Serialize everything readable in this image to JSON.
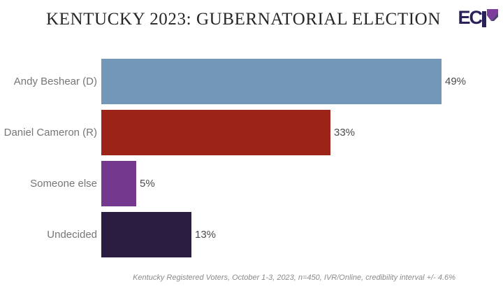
{
  "header": {
    "title": "KENTUCKY 2023: GUBERNATORIAL ELECTION",
    "logo": {
      "text": "EC",
      "stylized_letter": "P",
      "navy_color": "#29215a",
      "purple_color": "#7c3f9c"
    }
  },
  "chart_data": {
    "type": "bar",
    "orientation": "horizontal",
    "title": "KENTUCKY 2023: GUBERNATORIAL ELECTION",
    "categories": [
      "Andy Beshear (D)",
      "Daniel Cameron (R)",
      "Someone else",
      "Undecided"
    ],
    "values": [
      49,
      33,
      5,
      13
    ],
    "value_labels": [
      "49%",
      "33%",
      "5%",
      "13%"
    ],
    "bar_colors": [
      "#7397b9",
      "#9c2318",
      "#74388f",
      "#2b1c42"
    ],
    "xlabel": "",
    "ylabel": "",
    "xlim": [
      0,
      53
    ],
    "grid": false,
    "legend": false,
    "value_label_position": "outside-end",
    "footnote": "Kentucky Registered Voters, October 1-3, 2023, n=450, IVR/Online, credibility interval +/- 4.6%"
  },
  "footer": {
    "note": "Kentucky Registered Voters, October 1-3, 2023, n=450, IVR/Online, credibility interval +/- 4.6%"
  }
}
